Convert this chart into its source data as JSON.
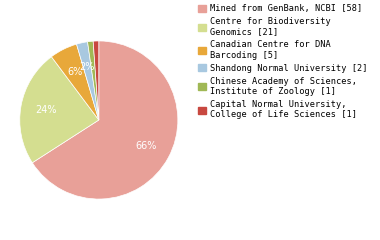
{
  "labels": [
    "Mined from GenBank, NCBI [58]",
    "Centre for Biodiversity\nGenomics [21]",
    "Canadian Centre for DNA\nBarcoding [5]",
    "Shandong Normal University [2]",
    "Chinese Academy of Sciences,\nInstitute of Zoology [1]",
    "Capital Normal University,\nCollege of Life Sciences [1]"
  ],
  "values": [
    58,
    21,
    5,
    2,
    1,
    1
  ],
  "colors": [
    "#e8a098",
    "#d4de90",
    "#e8a83a",
    "#a8c8e0",
    "#a0b855",
    "#c84840"
  ],
  "startangle": 90,
  "counterclock": false,
  "pct_fontsize": 7.0,
  "legend_fontsize": 6.2,
  "figsize": [
    3.8,
    2.4
  ],
  "dpi": 100
}
